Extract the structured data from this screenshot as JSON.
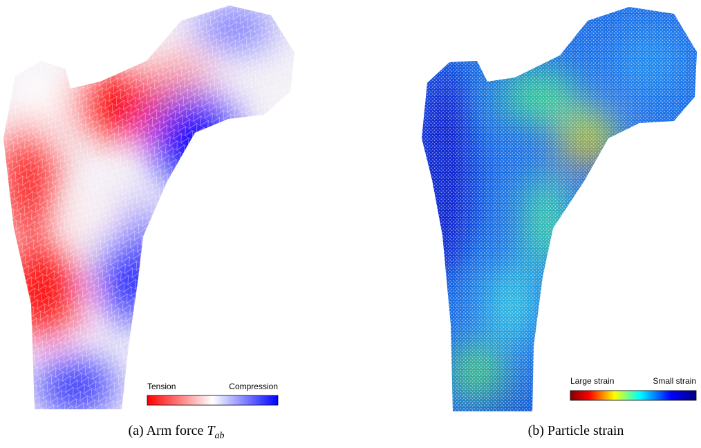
{
  "panels": [
    {
      "legend": {
        "low": "Tension",
        "high": "Compression"
      },
      "caption": {
        "label": "(a) Arm force",
        "symbol": "T",
        "subscript": "ab"
      }
    },
    {
      "legend": {
        "low": "Large strain",
        "high": "Small strain"
      },
      "caption": {
        "label": "(b) Particle strain"
      }
    }
  ]
}
